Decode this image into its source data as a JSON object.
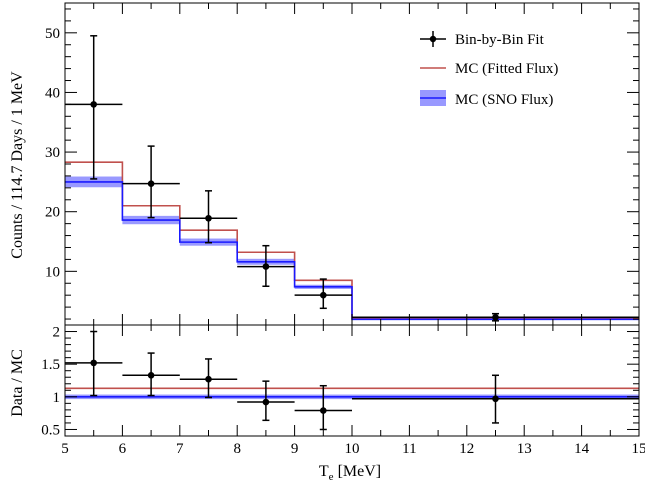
{
  "chart_data": [
    {
      "type": "line",
      "panel": "top",
      "ylabel": "Counts / 114.7 Days / 1 MeV",
      "xlim": [
        5,
        15
      ],
      "ylim": [
        1,
        55
      ],
      "yticks": [
        10,
        20,
        30,
        40,
        50
      ],
      "legend_position": "top-right",
      "legend": {
        "data": "Bin-by-Bin Fit",
        "fitted": "MC (Fitted Flux)",
        "sno": "MC (SNO Flux)"
      },
      "colors": {
        "data": "#000000",
        "fitted": "#c0504d",
        "sno": "#1a1aff",
        "sno_band": "#9999ff"
      },
      "data_points": [
        {
          "x": 5.5,
          "xerr": 0.5,
          "y": 38.0,
          "ylo": 25.5,
          "yhi": 49.5
        },
        {
          "x": 6.5,
          "xerr": 0.5,
          "y": 24.7,
          "ylo": 19.0,
          "yhi": 31.0
        },
        {
          "x": 7.5,
          "xerr": 0.5,
          "y": 18.9,
          "ylo": 14.8,
          "yhi": 23.5
        },
        {
          "x": 8.5,
          "xerr": 0.5,
          "y": 10.8,
          "ylo": 7.5,
          "yhi": 14.3
        },
        {
          "x": 9.5,
          "xerr": 0.5,
          "y": 6.0,
          "ylo": 3.8,
          "yhi": 8.7
        },
        {
          "x": 12.5,
          "xerr": 2.5,
          "y": 2.3,
          "ylo": 1.7,
          "yhi": 2.9
        }
      ],
      "mc_bins": [
        5,
        6,
        7,
        8,
        9,
        10,
        15
      ],
      "mc_fitted": [
        28.3,
        21.0,
        16.9,
        13.2,
        8.5,
        2.2
      ],
      "mc_sno": [
        25.0,
        18.6,
        14.9,
        11.6,
        7.4,
        1.95
      ],
      "mc_sno_err": [
        0.9,
        0.7,
        0.6,
        0.5,
        0.35,
        0.12
      ]
    },
    {
      "type": "line",
      "panel": "bottom",
      "ylabel": "Data / MC",
      "xlabel": "T",
      "xlabel_sub": "e",
      "xlabel_unit": " [MeV]",
      "xlim": [
        5,
        15
      ],
      "ylim": [
        0.4,
        2.1
      ],
      "yticks": [
        "0.5",
        "1",
        "1.5",
        "2"
      ],
      "xticks": [
        "5",
        "6",
        "7",
        "8",
        "9",
        "10",
        "11",
        "12",
        "13",
        "14",
        "15"
      ],
      "ratio_points": [
        {
          "x": 5.5,
          "xerr": 0.5,
          "y": 1.52,
          "ylo": 1.02,
          "yhi": 2.0
        },
        {
          "x": 6.5,
          "xerr": 0.5,
          "y": 1.33,
          "ylo": 1.02,
          "yhi": 1.67
        },
        {
          "x": 7.5,
          "xerr": 0.5,
          "y": 1.27,
          "ylo": 0.99,
          "yhi": 1.58
        },
        {
          "x": 8.5,
          "xerr": 0.5,
          "y": 0.92,
          "ylo": 0.64,
          "yhi": 1.24
        },
        {
          "x": 9.5,
          "xerr": 0.5,
          "y": 0.79,
          "ylo": 0.5,
          "yhi": 1.17
        },
        {
          "x": 12.5,
          "xerr": 2.5,
          "y": 0.97,
          "ylo": 0.6,
          "yhi": 1.33
        }
      ],
      "fitted_ratio": 1.13,
      "sno_ratio": 1.0,
      "sno_ratio_err": 0.035
    }
  ]
}
